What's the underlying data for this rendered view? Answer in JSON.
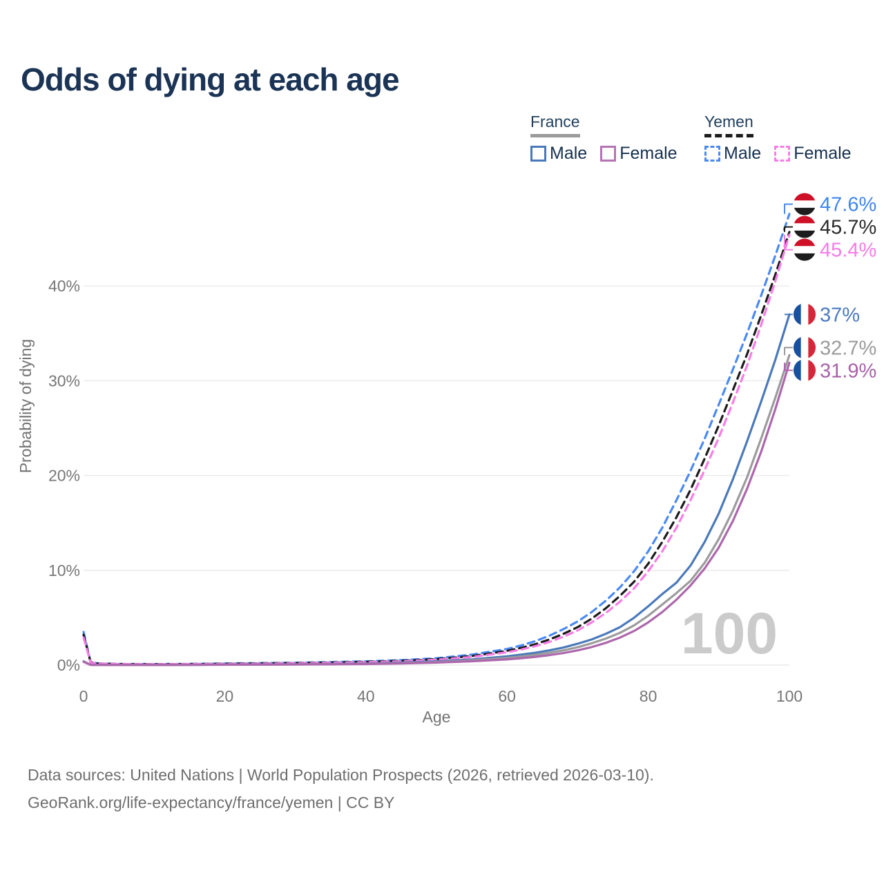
{
  "header": {
    "title": "Odds of dying at each age"
  },
  "legend": {
    "groups": [
      {
        "label": "France",
        "line_style": "solid",
        "line_color": "#9b9b9b",
        "items": [
          {
            "label": "Male",
            "swatch_style": "solid",
            "swatch_color": "#4a79ba"
          },
          {
            "label": "Female",
            "swatch_style": "solid",
            "swatch_color": "#b573b5"
          }
        ]
      },
      {
        "label": "Yemen",
        "line_style": "dashed",
        "line_color": "#1c1c1c",
        "items": [
          {
            "label": "Male",
            "swatch_style": "dashed",
            "swatch_color": "#4a89f3"
          },
          {
            "label": "Female",
            "swatch_style": "dashed",
            "swatch_color": "#f87ce5"
          }
        ]
      }
    ]
  },
  "flags": {
    "yemen": {
      "icon": "yemen-flag-icon",
      "orientation": "horizontal",
      "colors": [
        "#ce1126",
        "#ffffff",
        "#1d1d1d"
      ]
    },
    "france": {
      "icon": "france-flag-icon",
      "orientation": "vertical",
      "colors": [
        "#16509e",
        "#ffffff",
        "#d22839"
      ]
    }
  },
  "chart_data": {
    "type": "line",
    "title": "Odds of dying at each age",
    "xlabel": "Age",
    "ylabel": "Probability of dying",
    "xlim": [
      0,
      100
    ],
    "ylim": [
      0,
      40
    ],
    "grid": "horizontal",
    "legend_position": "top-right",
    "hover_age_watermark": "100",
    "xticks": [
      {
        "v": 0,
        "label": "0"
      },
      {
        "v": 20,
        "label": "20"
      },
      {
        "v": 40,
        "label": "40"
      },
      {
        "v": 60,
        "label": "60"
      },
      {
        "v": 80,
        "label": "80"
      },
      {
        "v": 100,
        "label": "100"
      }
    ],
    "yticks": [
      {
        "v": 0,
        "label": "0%"
      },
      {
        "v": 10,
        "label": "10%"
      },
      {
        "v": 20,
        "label": "20%"
      },
      {
        "v": 30,
        "label": "30%"
      },
      {
        "v": 40,
        "label": "40%"
      }
    ],
    "x": [
      0,
      1,
      2,
      5,
      10,
      15,
      20,
      25,
      30,
      35,
      40,
      45,
      50,
      55,
      60,
      62,
      64,
      66,
      68,
      70,
      72,
      74,
      76,
      78,
      80,
      82,
      84,
      86,
      88,
      90,
      92,
      94,
      96,
      98,
      100
    ],
    "series": [
      {
        "name": "Yemen Male",
        "country": "Yemen",
        "sex": "Male",
        "color": "#4a89f3",
        "dash": true,
        "flag": "yemen",
        "end_value_label": "47.6%",
        "label_color": "#3f86f0",
        "values": [
          3.5,
          0.32,
          0.18,
          0.12,
          0.1,
          0.12,
          0.17,
          0.21,
          0.25,
          0.31,
          0.39,
          0.52,
          0.72,
          1.1,
          1.7,
          2.07,
          2.52,
          3.1,
          3.8,
          4.6,
          5.6,
          6.8,
          8.2,
          9.9,
          12,
          14.5,
          17.4,
          20.5,
          23.9,
          27.5,
          31.2,
          35,
          39,
          43.2,
          47.6
        ]
      },
      {
        "name": "Yemen Both sexes",
        "country": "Yemen",
        "sex": "Both sexes",
        "color": "#1c1c1c",
        "dash": true,
        "flag": "yemen",
        "end_value_label": "45.7%",
        "label_color": "#2b2b2b",
        "values": [
          3.2,
          0.29,
          0.16,
          0.11,
          0.09,
          0.11,
          0.14,
          0.18,
          0.22,
          0.27,
          0.34,
          0.45,
          0.63,
          0.95,
          1.5,
          1.82,
          2.2,
          2.7,
          3.3,
          4,
          4.9,
          6,
          7.3,
          8.8,
          10.7,
          13,
          15.6,
          18.5,
          21.8,
          25.3,
          29,
          32.8,
          36.9,
          41.2,
          45.7
        ]
      },
      {
        "name": "Yemen Female",
        "country": "Yemen",
        "sex": "Female",
        "color": "#f87ce5",
        "dash": true,
        "flag": "yemen",
        "end_value_label": "45.4%",
        "label_color": "#f87ce5",
        "values": [
          2.9,
          0.26,
          0.15,
          0.1,
          0.08,
          0.1,
          0.12,
          0.15,
          0.19,
          0.24,
          0.3,
          0.4,
          0.56,
          0.85,
          1.35,
          1.64,
          2,
          2.44,
          3,
          3.65,
          4.5,
          5.5,
          6.7,
          8.1,
          9.9,
          12,
          14.5,
          17.4,
          20.6,
          24,
          27.7,
          31.6,
          35.9,
          40.5,
          45.4
        ]
      },
      {
        "name": "France Male",
        "country": "France",
        "sex": "Male",
        "color": "#4a79ba",
        "dash": false,
        "flag": "france",
        "end_value_label": "37%",
        "label_color": "#4a7ac0",
        "values": [
          0.4,
          0.03,
          0.02,
          0.01,
          0.01,
          0.03,
          0.06,
          0.07,
          0.09,
          0.12,
          0.17,
          0.26,
          0.39,
          0.6,
          0.92,
          1.1,
          1.3,
          1.55,
          1.85,
          2.25,
          2.7,
          3.3,
          4,
          5,
          6.2,
          7.5,
          8.7,
          10.5,
          13,
          16,
          19.6,
          23.6,
          27.8,
          32.2,
          37
        ]
      },
      {
        "name": "France Both sexes",
        "country": "France",
        "sex": "Both sexes",
        "color": "#9b9b9b",
        "dash": false,
        "flag": "france",
        "end_value_label": "32.7%",
        "label_color": "#9b9b9b",
        "values": [
          0.37,
          0.028,
          0.018,
          0.009,
          0.009,
          0.025,
          0.05,
          0.06,
          0.075,
          0.1,
          0.14,
          0.21,
          0.32,
          0.5,
          0.76,
          0.9,
          1.08,
          1.3,
          1.55,
          1.88,
          2.3,
          2.8,
          3.4,
          4.2,
          5.2,
          6.4,
          7.6,
          8.9,
          10.8,
          13.3,
          16.3,
          19.8,
          23.9,
          28.2,
          32.7
        ]
      },
      {
        "name": "France Female",
        "country": "France",
        "sex": "Female",
        "color": "#ad66ad",
        "dash": false,
        "flag": "france",
        "end_value_label": "31.9%",
        "label_color": "#a862a8",
        "values": [
          0.34,
          0.026,
          0.016,
          0.008,
          0.008,
          0.02,
          0.035,
          0.045,
          0.06,
          0.08,
          0.11,
          0.17,
          0.26,
          0.4,
          0.6,
          0.72,
          0.87,
          1.05,
          1.27,
          1.55,
          1.9,
          2.35,
          2.9,
          3.6,
          4.5,
          5.6,
          6.9,
          8.4,
          10.2,
          12.4,
          15.2,
          18.6,
          22.5,
          27,
          31.9
        ]
      }
    ]
  },
  "footer": {
    "line1": "Data sources: United Nations | World Population Prospects (2026, retrieved 2026-03-10).",
    "line2": "GeoRank.org/life-expectancy/france/yemen | CC BY"
  }
}
